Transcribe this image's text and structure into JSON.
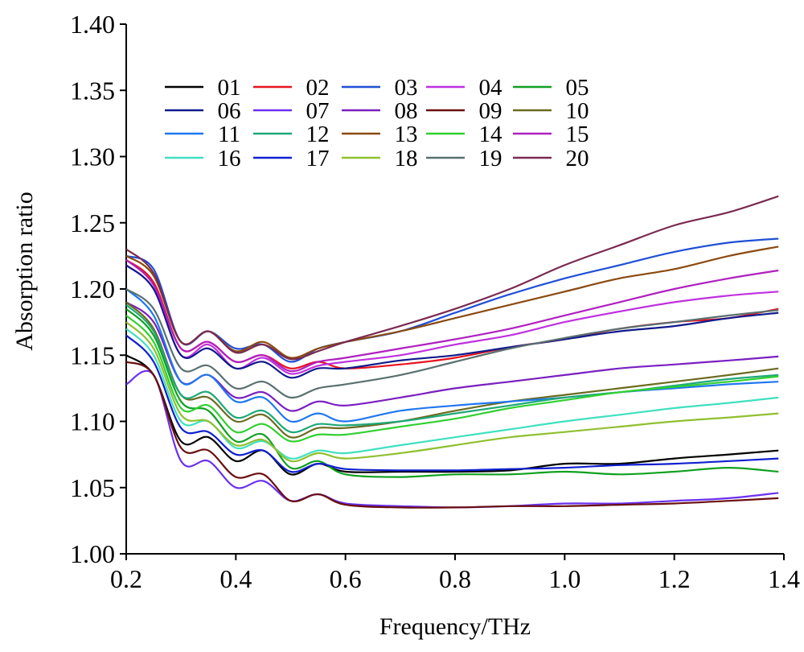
{
  "chart_data": {
    "type": "line",
    "title": "",
    "xlabel": "Frequency/THz",
    "ylabel": "Absorption ratio",
    "xlim": [
      0.2,
      1.4
    ],
    "ylim": [
      1.0,
      1.4
    ],
    "xticks": [
      "0.2",
      "0.4",
      "0.6",
      "0.8",
      "1.0",
      "1.2",
      "1.4"
    ],
    "yticks": [
      "1.00",
      "1.05",
      "1.10",
      "1.15",
      "1.20",
      "1.25",
      "1.30",
      "1.35",
      "1.40"
    ],
    "grid": false,
    "legend_position": "top-left",
    "x": [
      0.2,
      0.25,
      0.3,
      0.35,
      0.4,
      0.45,
      0.5,
      0.55,
      0.6,
      0.7,
      0.8,
      0.9,
      1.0,
      1.1,
      1.2,
      1.3,
      1.4
    ],
    "series": [
      {
        "name": "01",
        "color": "#000000",
        "values": [
          1.15,
          1.135,
          1.085,
          1.088,
          1.07,
          1.078,
          1.06,
          1.068,
          1.062,
          1.062,
          1.062,
          1.063,
          1.068,
          1.068,
          1.072,
          1.075,
          1.078
        ]
      },
      {
        "name": "02",
        "color": "#e8131d",
        "values": [
          1.222,
          1.205,
          1.155,
          1.16,
          1.145,
          1.15,
          1.14,
          1.145,
          1.14,
          1.143,
          1.148,
          1.156,
          1.162,
          1.17,
          1.175,
          1.178,
          1.185
        ]
      },
      {
        "name": "03",
        "color": "#1f4fd6",
        "values": [
          1.225,
          1.215,
          1.16,
          1.168,
          1.155,
          1.158,
          1.145,
          1.155,
          1.16,
          1.168,
          1.182,
          1.196,
          1.208,
          1.218,
          1.228,
          1.235,
          1.238
        ]
      },
      {
        "name": "04",
        "color": "#c030e0",
        "values": [
          1.218,
          1.2,
          1.15,
          1.158,
          1.14,
          1.148,
          1.136,
          1.142,
          1.145,
          1.15,
          1.158,
          1.165,
          1.175,
          1.183,
          1.19,
          1.195,
          1.198
        ]
      },
      {
        "name": "05",
        "color": "#10a020",
        "values": [
          1.185,
          1.165,
          1.115,
          1.108,
          1.085,
          1.09,
          1.065,
          1.07,
          1.06,
          1.058,
          1.06,
          1.06,
          1.062,
          1.06,
          1.062,
          1.065,
          1.062
        ]
      },
      {
        "name": "06",
        "color": "#101a8c",
        "values": [
          1.218,
          1.2,
          1.15,
          1.155,
          1.14,
          1.145,
          1.133,
          1.14,
          1.14,
          1.146,
          1.15,
          1.156,
          1.162,
          1.168,
          1.172,
          1.178,
          1.182
        ]
      },
      {
        "name": "07",
        "color": "#6a30f0",
        "values": [
          1.128,
          1.135,
          1.07,
          1.07,
          1.05,
          1.055,
          1.04,
          1.045,
          1.038,
          1.036,
          1.035,
          1.036,
          1.038,
          1.038,
          1.04,
          1.042,
          1.046
        ]
      },
      {
        "name": "08",
        "color": "#7a1fc0",
        "values": [
          1.19,
          1.175,
          1.13,
          1.135,
          1.118,
          1.122,
          1.108,
          1.115,
          1.112,
          1.118,
          1.125,
          1.13,
          1.135,
          1.14,
          1.143,
          1.146,
          1.149
        ]
      },
      {
        "name": "09",
        "color": "#6a0f0f",
        "values": [
          1.145,
          1.135,
          1.08,
          1.078,
          1.058,
          1.06,
          1.04,
          1.045,
          1.037,
          1.035,
          1.035,
          1.036,
          1.036,
          1.037,
          1.038,
          1.04,
          1.042
        ]
      },
      {
        "name": "10",
        "color": "#6b6b20",
        "values": [
          1.19,
          1.17,
          1.12,
          1.118,
          1.1,
          1.105,
          1.088,
          1.095,
          1.095,
          1.1,
          1.108,
          1.115,
          1.12,
          1.125,
          1.13,
          1.135,
          1.14
        ]
      },
      {
        "name": "11",
        "color": "#1f77f0",
        "values": [
          1.2,
          1.18,
          1.13,
          1.135,
          1.115,
          1.118,
          1.1,
          1.106,
          1.1,
          1.108,
          1.112,
          1.115,
          1.118,
          1.122,
          1.125,
          1.128,
          1.13
        ]
      },
      {
        "name": "12",
        "color": "#1ea878",
        "values": [
          1.188,
          1.168,
          1.12,
          1.122,
          1.103,
          1.108,
          1.092,
          1.098,
          1.097,
          1.1,
          1.106,
          1.112,
          1.118,
          1.122,
          1.127,
          1.132,
          1.135
        ]
      },
      {
        "name": "13",
        "color": "#8a4a10",
        "values": [
          1.225,
          1.21,
          1.16,
          1.168,
          1.153,
          1.16,
          1.148,
          1.155,
          1.16,
          1.168,
          1.178,
          1.188,
          1.198,
          1.208,
          1.215,
          1.225,
          1.232
        ]
      },
      {
        "name": "14",
        "color": "#30d030",
        "values": [
          1.18,
          1.16,
          1.11,
          1.112,
          1.092,
          1.098,
          1.085,
          1.09,
          1.09,
          1.096,
          1.102,
          1.11,
          1.116,
          1.122,
          1.126,
          1.13,
          1.134
        ]
      },
      {
        "name": "15",
        "color": "#b020c0",
        "values": [
          1.222,
          1.203,
          1.155,
          1.16,
          1.145,
          1.15,
          1.138,
          1.145,
          1.148,
          1.155,
          1.162,
          1.17,
          1.18,
          1.19,
          1.2,
          1.208,
          1.214
        ]
      },
      {
        "name": "16",
        "color": "#40e0c0",
        "values": [
          1.17,
          1.15,
          1.1,
          1.1,
          1.08,
          1.085,
          1.072,
          1.078,
          1.076,
          1.082,
          1.088,
          1.094,
          1.1,
          1.105,
          1.11,
          1.114,
          1.118
        ]
      },
      {
        "name": "17",
        "color": "#1020d0",
        "values": [
          1.165,
          1.145,
          1.095,
          1.092,
          1.075,
          1.078,
          1.062,
          1.068,
          1.064,
          1.063,
          1.063,
          1.064,
          1.065,
          1.067,
          1.068,
          1.07,
          1.072
        ]
      },
      {
        "name": "18",
        "color": "#90c030",
        "values": [
          1.175,
          1.155,
          1.105,
          1.1,
          1.082,
          1.086,
          1.07,
          1.076,
          1.072,
          1.076,
          1.082,
          1.088,
          1.092,
          1.096,
          1.1,
          1.103,
          1.106
        ]
      },
      {
        "name": "19",
        "color": "#5a7070",
        "values": [
          1.2,
          1.185,
          1.14,
          1.142,
          1.125,
          1.13,
          1.118,
          1.125,
          1.128,
          1.135,
          1.145,
          1.155,
          1.163,
          1.17,
          1.175,
          1.18,
          1.184
        ]
      },
      {
        "name": "20",
        "color": "#7a2a50",
        "values": [
          1.23,
          1.212,
          1.16,
          1.168,
          1.152,
          1.158,
          1.147,
          1.153,
          1.16,
          1.172,
          1.185,
          1.2,
          1.218,
          1.233,
          1.248,
          1.258,
          1.27
        ]
      }
    ]
  }
}
